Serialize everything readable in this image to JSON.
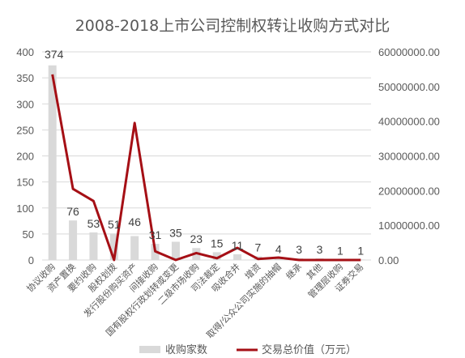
{
  "chart_data": {
    "type": "bar+line",
    "title": "2008-2018上市公司控制权转让收购方式对比",
    "categories": [
      "协议收购",
      "资产置换",
      "要约收购",
      "股权划拨",
      "发行股份购买资产",
      "间接收购",
      "国有股权行政划转或变更",
      "二级市场收购",
      "司法裁定",
      "吸收合并",
      "增资",
      "取得/公众公司实施的抽帽",
      "继承",
      "其他",
      "管理层收购",
      "证券交易"
    ],
    "series": [
      {
        "name": "收购家数",
        "type": "bar",
        "axis": "left",
        "values": [
          374,
          76,
          53,
          51,
          46,
          31,
          35,
          23,
          15,
          11,
          7,
          4,
          3,
          3,
          1,
          1
        ]
      },
      {
        "name": "交易总价值（万元）",
        "type": "line",
        "axis": "right",
        "values": [
          53500000,
          20500000,
          17000000,
          0,
          39500000,
          2500000,
          0,
          2000000,
          500000,
          3500000,
          300000,
          700000,
          0,
          0,
          0,
          0
        ]
      }
    ],
    "yleft": {
      "min": 0,
      "max": 400,
      "ticks": [
        "0",
        "50",
        "100",
        "150",
        "200",
        "250",
        "300",
        "350",
        "400"
      ]
    },
    "yright": {
      "min": 0,
      "max": 60000000,
      "ticks": [
        "0.00",
        "10000000.00",
        "20000000.00",
        "30000000.00",
        "40000000.00",
        "50000000.00",
        "60000000.00"
      ]
    },
    "legend": "bottom",
    "colors": {
      "bar": "#d9d9d9",
      "line": "#a50f15",
      "grid": "#d9d9d9"
    }
  }
}
